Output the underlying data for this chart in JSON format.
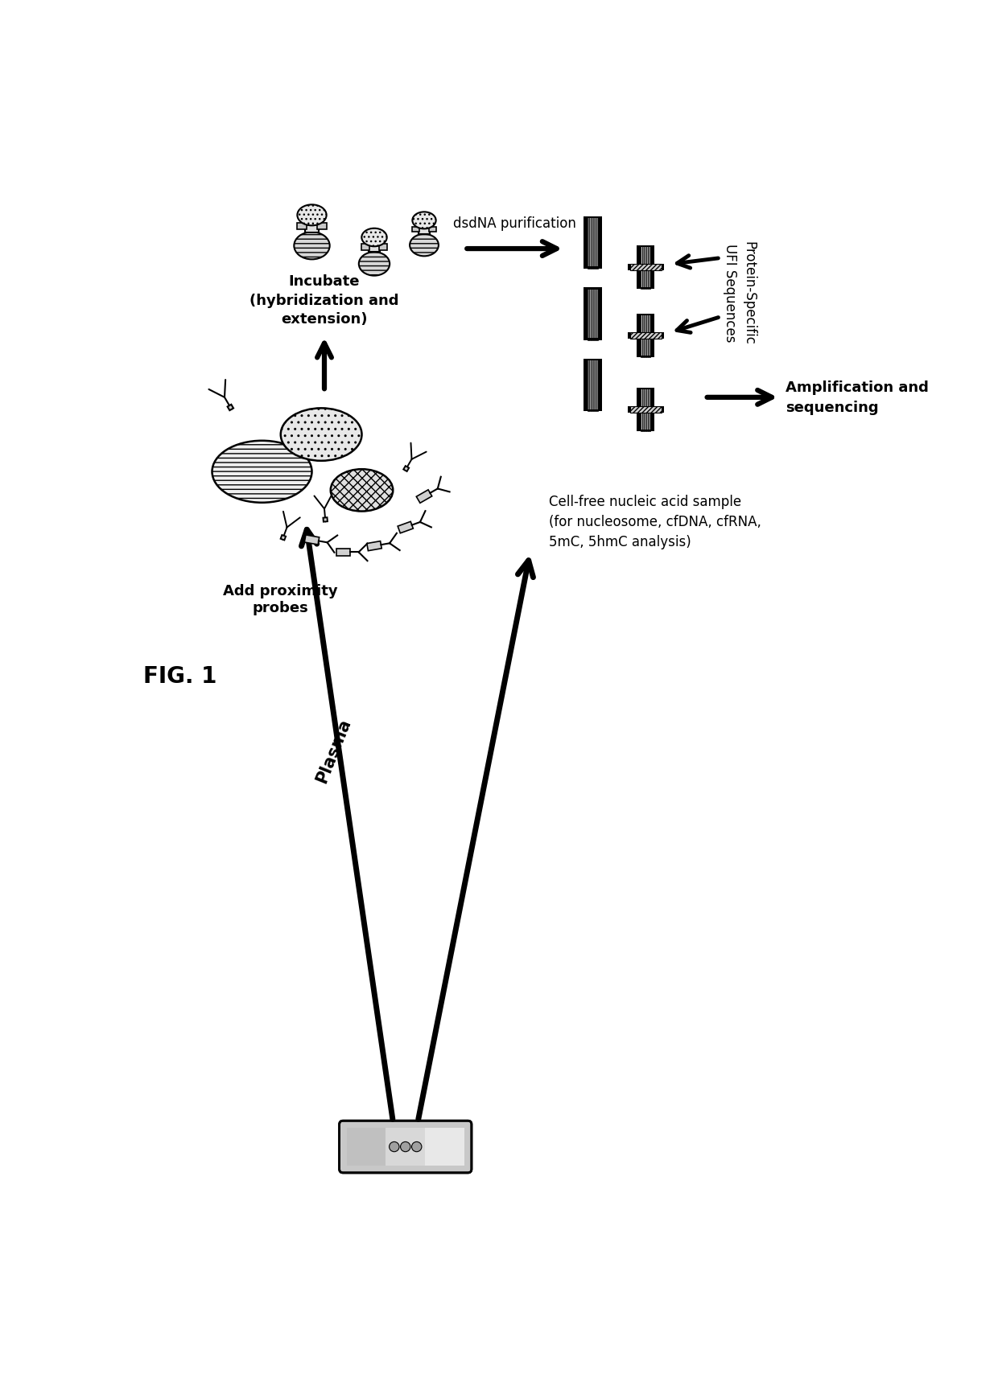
{
  "fig_label": "FIG. 1",
  "background_color": "#ffffff",
  "labels": {
    "plasma": "Plasma",
    "add_probes": "Add proximity\nprobes",
    "incubate": "Incubate\n(hybridization and\nextension)",
    "dsdna_purif": "dsdNA purification",
    "protein_specific": "Protein-Specific\nUFI Sequences",
    "amplification": "Amplification and\nsequencing",
    "cell_free": "Cell-free nucleic acid sample\n(for nucleosome, cfDNA, cfRNA,\n5mC, 5hmC analysis)"
  }
}
